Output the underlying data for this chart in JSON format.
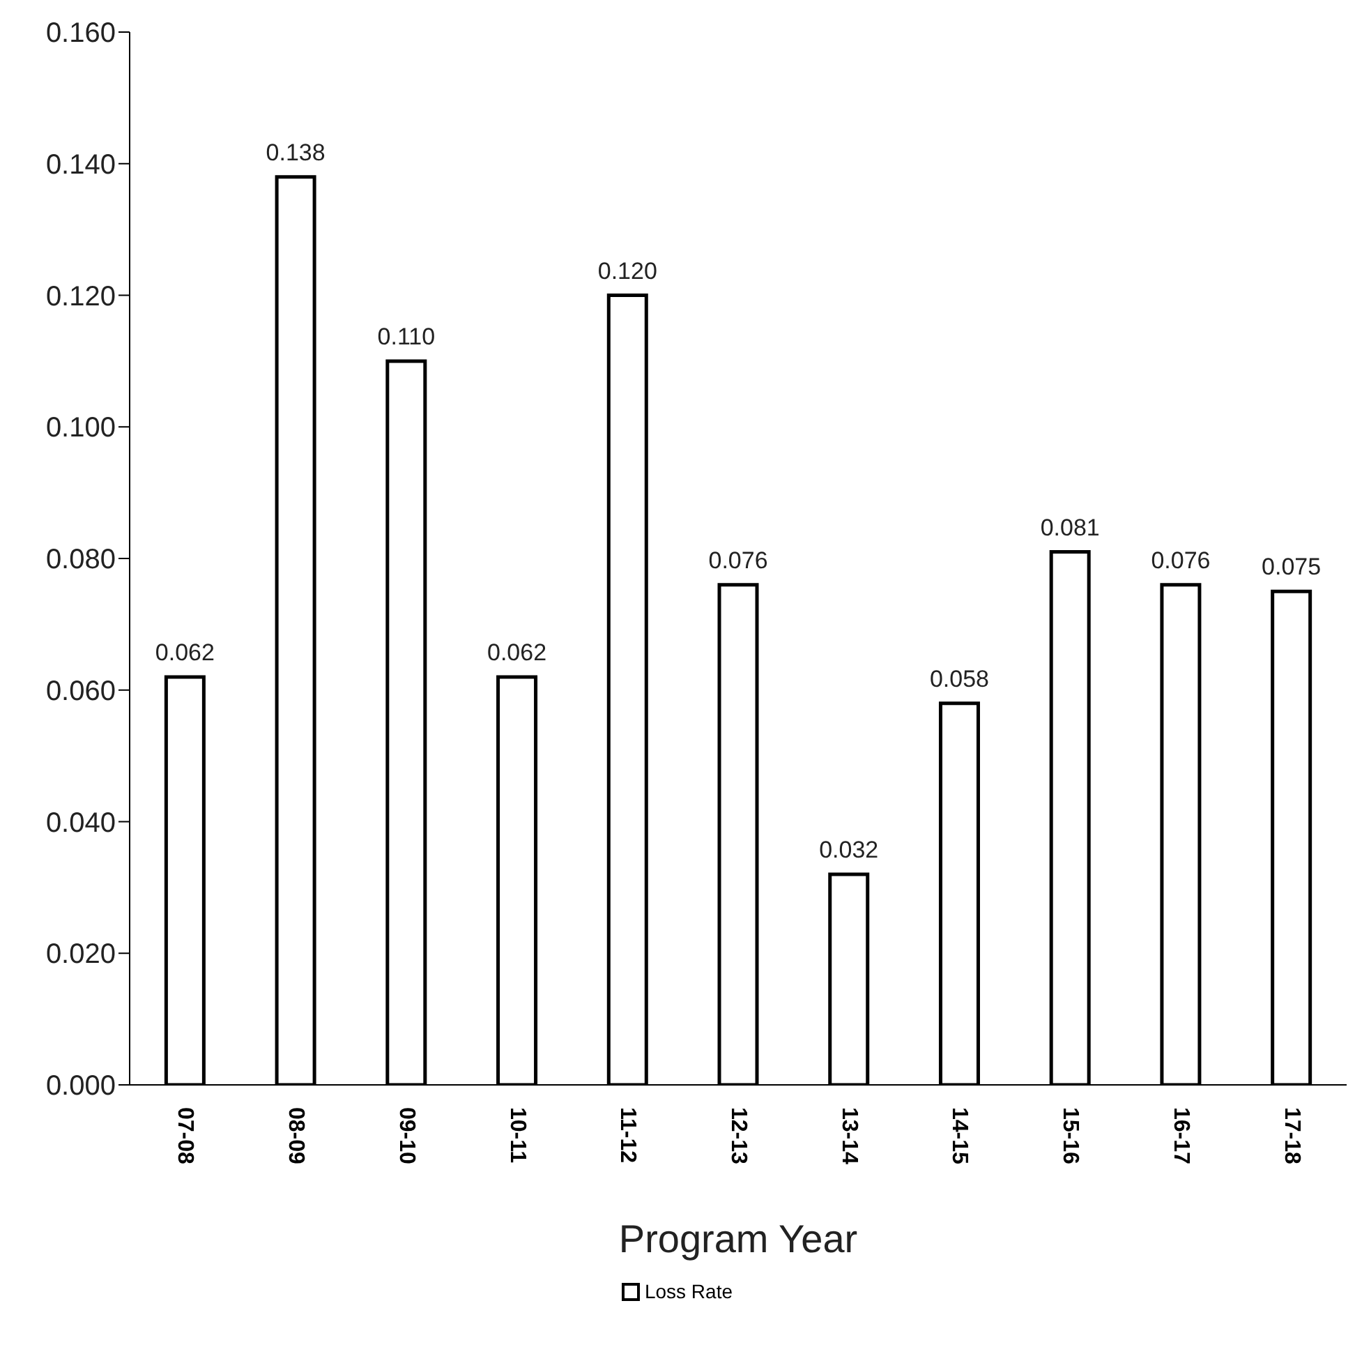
{
  "chart_data": {
    "type": "bar",
    "xlabel": "Program Year",
    "categories": [
      "07-08",
      "08-09",
      "09-10",
      "10-11",
      "11-12",
      "12-13",
      "13-14",
      "14-15",
      "15-16",
      "16-17",
      "17-18"
    ],
    "series": [
      {
        "name": "Loss Rate",
        "color": "#ffffff",
        "values": [
          0.062,
          0.138,
          0.11,
          0.062,
          0.12,
          0.076,
          0.032,
          0.058,
          0.081,
          0.076,
          0.075
        ],
        "value_labels": [
          "0.062",
          "0.138",
          "0.110",
          "0.062",
          "0.120",
          "0.076",
          "0.032",
          "0.058",
          "0.081",
          "0.076",
          "0.075"
        ]
      }
    ],
    "ylim": [
      0,
      0.16
    ],
    "yticks": [
      {
        "value": 0,
        "label": "0.000"
      },
      {
        "value": 0.02,
        "label": "0.020"
      },
      {
        "value": 0.04,
        "label": "0.040"
      },
      {
        "value": 0.06,
        "label": "0.060"
      },
      {
        "value": 0.08,
        "label": "0.080"
      },
      {
        "value": 0.1,
        "label": "0.100"
      },
      {
        "value": 0.12,
        "label": "0.120"
      },
      {
        "value": 0.14,
        "label": "0.140"
      },
      {
        "value": 0.16,
        "label": "0.160"
      }
    ],
    "grid": false,
    "legend": "bottom"
  }
}
